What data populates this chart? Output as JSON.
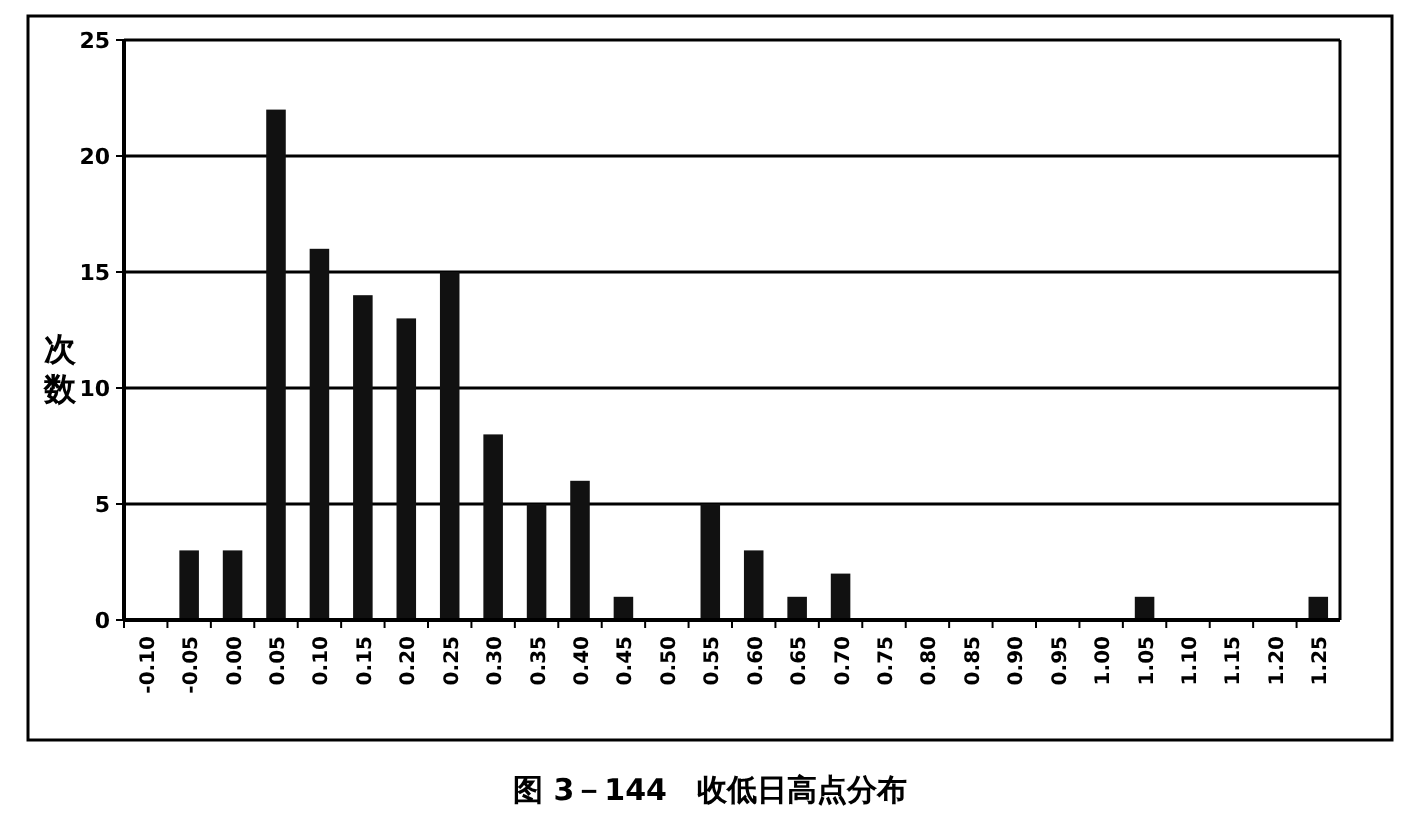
{
  "chart_data": {
    "type": "bar",
    "title": "图 3－144　收低日高点分布",
    "ylabel": "次数",
    "categories": [
      "-0.10",
      "-0.05",
      "0.00",
      "0.05",
      "0.10",
      "0.15",
      "0.20",
      "0.25",
      "0.30",
      "0.35",
      "0.40",
      "0.45",
      "0.50",
      "0.55",
      "0.60",
      "0.65",
      "0.70",
      "0.75",
      "0.80",
      "0.85",
      "0.90",
      "0.95",
      "1.00",
      "1.05",
      "1.10",
      "1.15",
      "1.20",
      "1.25"
    ],
    "values": [
      0,
      3,
      3,
      22,
      16,
      14,
      13,
      15,
      8,
      5,
      6,
      1,
      0,
      5,
      3,
      1,
      2,
      0,
      0,
      0,
      0,
      0,
      0,
      1,
      0,
      0,
      0,
      1
    ],
    "color": "#111111",
    "ylim": [
      0,
      25
    ],
    "yticks": [
      0,
      5,
      10,
      15,
      20,
      25
    ],
    "grid": "y"
  }
}
